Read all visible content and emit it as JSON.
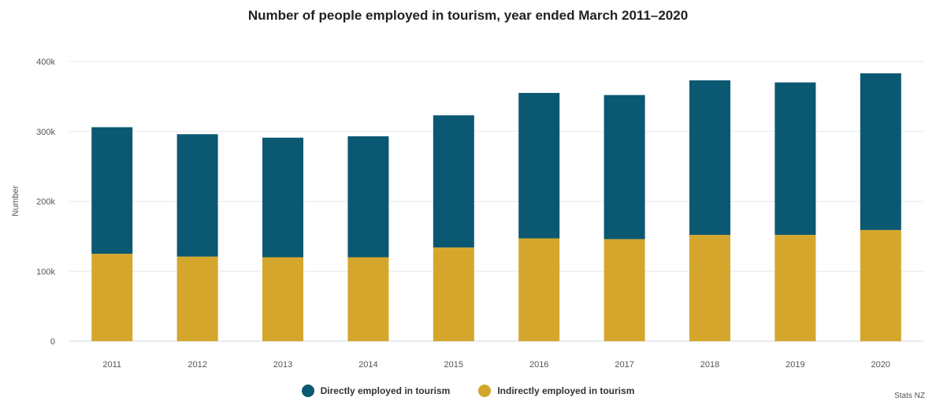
{
  "chart_data": {
    "type": "bar",
    "stacked": true,
    "title": "Number of people employed in tourism, year ended March 2011–2020",
    "xlabel": "",
    "ylabel": "Number",
    "ylim": [
      0,
      400000
    ],
    "yticks": [
      0,
      100000,
      200000,
      300000,
      400000
    ],
    "ytick_labels": [
      "0",
      "100k",
      "200k",
      "300k",
      "400k"
    ],
    "categories": [
      "2011",
      "2012",
      "2013",
      "2014",
      "2015",
      "2016",
      "2017",
      "2018",
      "2019",
      "2020"
    ],
    "series": [
      {
        "name": "Indirectly employed in tourism",
        "color": "#d4a72c",
        "values": [
          125000,
          121000,
          120000,
          120000,
          134000,
          147000,
          146000,
          152000,
          152000,
          159000
        ]
      },
      {
        "name": "Directly employed in tourism",
        "color": "#0b5872",
        "values": [
          181000,
          175000,
          171000,
          173000,
          189000,
          208000,
          206000,
          221000,
          218000,
          224000
        ]
      }
    ],
    "legend_position": "bottom",
    "grid": true,
    "source": "Stats NZ"
  }
}
